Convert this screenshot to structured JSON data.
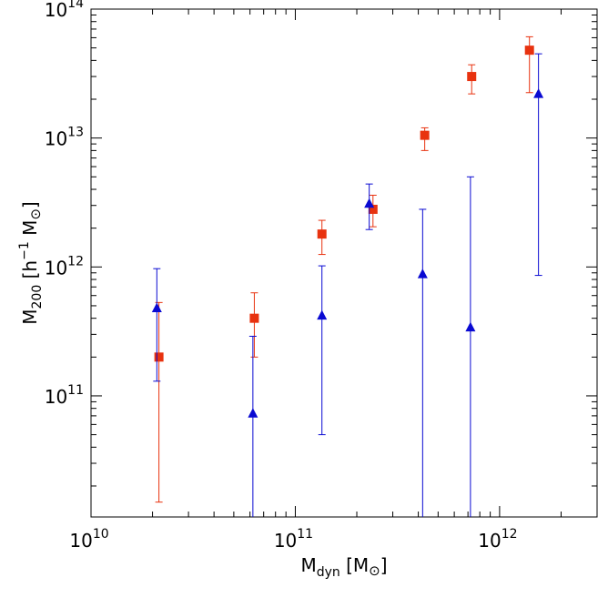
{
  "chart_data": {
    "type": "scatter",
    "title": "",
    "xlabel": {
      "main": "M",
      "sub": "dyn",
      "unit": " [M",
      "sun": "⊙",
      "close": "]"
    },
    "ylabel": {
      "main": "M",
      "sub": "200",
      "unit": " [h",
      "exp": "−1",
      "unit2": " M",
      "sun": "⊙",
      "close": "]"
    },
    "x_scale": "log",
    "y_scale": "log",
    "xlim": [
      10000000000.0,
      3000000000000.0
    ],
    "ylim": [
      11500000000.0,
      100000000000000.0
    ],
    "x_ticks": [
      {
        "value": 10000000000.0,
        "base": "10",
        "exp": "10"
      },
      {
        "value": 100000000000.0,
        "base": "10",
        "exp": "11"
      },
      {
        "value": 1000000000000.0,
        "base": "10",
        "exp": "12"
      }
    ],
    "y_ticks": [
      {
        "value": 100000000000.0,
        "base": "10",
        "exp": "11"
      },
      {
        "value": 1000000000000.0,
        "base": "10",
        "exp": "12"
      },
      {
        "value": 10000000000000.0,
        "base": "10",
        "exp": "13"
      },
      {
        "value": 100000000000000.0,
        "base": "10",
        "exp": "14"
      }
    ],
    "grid": false,
    "series": [
      {
        "marker": "square",
        "color": "#e8320f",
        "points": [
          {
            "x": 21500000000.0,
            "y": 200000000000.0,
            "ylo": 15000000000.0,
            "yhi": 530000000000.0
          },
          {
            "x": 63000000000.0,
            "y": 400000000000.0,
            "ylo": 200000000000.0,
            "yhi": 630000000000.0
          },
          {
            "x": 135000000000.0,
            "y": 1800000000000.0,
            "ylo": 1250000000000.0,
            "yhi": 2300000000000.0
          },
          {
            "x": 240000000000.0,
            "y": 2800000000000.0,
            "ylo": 2050000000000.0,
            "yhi": 3600000000000.0
          },
          {
            "x": 430000000000.0,
            "y": 10500000000000.0,
            "ylo": 8000000000000.0,
            "yhi": 12000000000000.0
          },
          {
            "x": 730000000000.0,
            "y": 30000000000000.0,
            "ylo": 22000000000000.0,
            "yhi": 37000000000000.0
          },
          {
            "x": 1400000000000.0,
            "y": 48000000000000.0,
            "ylo": 22500000000000.0,
            "yhi": 61000000000000.0
          }
        ]
      },
      {
        "marker": "triangle",
        "color": "#0a0ad2",
        "points": [
          {
            "x": 21000000000.0,
            "y": 480000000000.0,
            "ylo": 130000000000.0,
            "yhi": 970000000000.0
          },
          {
            "x": 62000000000.0,
            "y": 73000000000.0,
            "ylo": 11500000000.0,
            "yhi": 290000000000.0
          },
          {
            "x": 135000000000.0,
            "y": 420000000000.0,
            "ylo": 50000000000.0,
            "yhi": 1020000000000.0
          },
          {
            "x": 230000000000.0,
            "y": 3100000000000.0,
            "ylo": 1950000000000.0,
            "yhi": 4400000000000.0
          },
          {
            "x": 420000000000.0,
            "y": 880000000000.0,
            "ylo": 11500000000.0,
            "yhi": 2800000000000.0
          },
          {
            "x": 720000000000.0,
            "y": 340000000000.0,
            "ylo": 11500000000.0,
            "yhi": 5000000000000.0
          },
          {
            "x": 1550000000000.0,
            "y": 22000000000000.0,
            "ylo": 860000000000.0,
            "yhi": 45000000000000.0
          }
        ]
      }
    ]
  }
}
